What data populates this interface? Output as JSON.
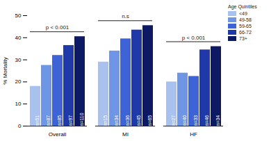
{
  "chart_data": {
    "type": "bar",
    "categories": [
      "Overall",
      "MI",
      "HF"
    ],
    "y_label": "% Mortality",
    "ylim": [
      0,
      50
    ],
    "yticks": [
      0,
      10,
      20,
      30,
      40,
      50
    ],
    "grid": false,
    "legend": "top-right",
    "legend_title": "Age Quintiles",
    "series": [
      {
        "name": "<49",
        "color": "#a9c1ef",
        "values": [
          18,
          29,
          20
        ],
        "n_labels": [
          "n=51",
          "n=15",
          "n=27"
        ]
      },
      {
        "name": "49-58",
        "color": "#6f95e6",
        "values": [
          27.5,
          34,
          24
        ],
        "n_labels": [
          "n=87",
          "n=34",
          "n=40"
        ]
      },
      {
        "name": "59-65",
        "color": "#3d63d6",
        "values": [
          32,
          39.5,
          22.5
        ],
        "n_labels": [
          "n=85",
          "n=36",
          "n=33"
        ]
      },
      {
        "name": "66-72",
        "color": "#1f3aa8",
        "values": [
          36.5,
          43.5,
          34.5
        ],
        "n_labels": [
          "n=97",
          "n=45",
          "n=46"
        ]
      },
      {
        "name": "73+",
        "color": "#0d1a63",
        "values": [
          40.5,
          45.5,
          36
        ],
        "n_labels": [
          "n=110",
          "n=65",
          "n=34"
        ]
      }
    ],
    "annotations": [
      {
        "category": "Overall",
        "text": "p < 0.001"
      },
      {
        "category": "MI",
        "text": "n.s"
      },
      {
        "category": "HF",
        "text": "p < 0.001"
      }
    ]
  }
}
